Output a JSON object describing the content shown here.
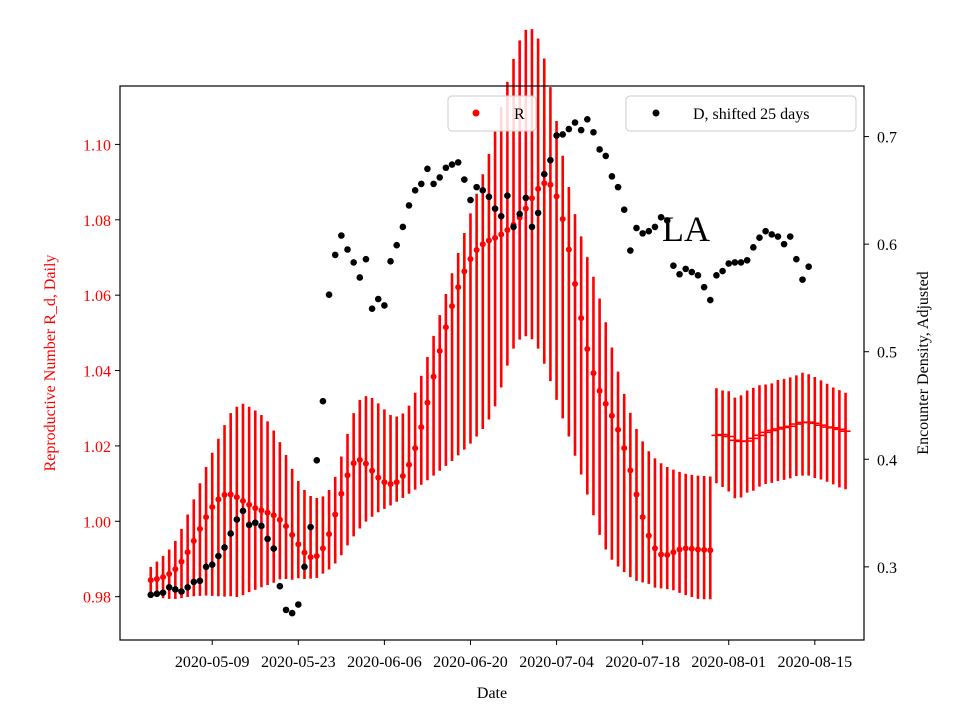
{
  "chart_data": {
    "type": "scatter",
    "title": "",
    "annotation": "LA",
    "xlabel": "Date",
    "ylabel_left": "Reproductive Number R_d, Daily",
    "ylabel_right": "Encounter Density, Adjusted",
    "x_start": "2020-04-29",
    "x_tick_labels": [
      "2020-05-09",
      "2020-05-23",
      "2020-06-06",
      "2020-06-20",
      "2020-07-04",
      "2020-07-18",
      "2020-08-01",
      "2020-08-15"
    ],
    "x_tick_day_index": [
      10,
      24,
      38,
      52,
      66,
      80,
      94,
      108
    ],
    "xlim_day_index": [
      -5,
      116
    ],
    "y_left": {
      "lim": [
        0.9685,
        1.1155
      ],
      "ticks": [
        0.98,
        1.0,
        1.02,
        1.04,
        1.06,
        1.08,
        1.1
      ],
      "tick_labels": [
        "0.98",
        "1.00",
        "1.02",
        "1.04",
        "1.06",
        "1.08",
        "1.10"
      ],
      "color": "#ff0000"
    },
    "y_right": {
      "lim": [
        0.232,
        0.747
      ],
      "ticks": [
        0.3,
        0.4,
        0.5,
        0.6,
        0.7
      ],
      "tick_labels": [
        "0.3",
        "0.4",
        "0.5",
        "0.6",
        "0.7"
      ],
      "color": "#000000"
    },
    "legend_left": {
      "label": "R",
      "placement": "upper-center",
      "marker_color": "#ff0000"
    },
    "legend_right": {
      "label": "D, shifted 25 days",
      "placement": "upper-right",
      "marker_color": "#000000"
    },
    "series_R": {
      "name": "R",
      "color": "#ff0000",
      "start_day_index": 0,
      "values": [
        0.9844,
        0.9847,
        0.9852,
        0.986,
        0.9873,
        0.9893,
        0.9918,
        0.9948,
        0.998,
        1.0011,
        1.0038,
        1.0058,
        1.007,
        1.0071,
        1.0064,
        1.0054,
        1.0044,
        1.0035,
        1.0029,
        1.0023,
        1.0016,
        1.0004,
        0.9987,
        0.9964,
        0.9939,
        0.9917,
        0.9905,
        0.9908,
        0.9928,
        0.9966,
        1.0018,
        1.0073,
        1.0122,
        1.0154,
        1.0163,
        1.0153,
        1.0134,
        1.0116,
        1.0104,
        1.0099,
        1.0104,
        1.012,
        1.015,
        1.0194,
        1.025,
        1.0315,
        1.0384,
        1.0452,
        1.0515,
        1.0571,
        1.0621,
        1.0663,
        1.0696,
        1.072,
        1.0735,
        1.0745,
        1.0752,
        1.0761,
        1.0773,
        1.0787,
        1.0806,
        1.083,
        1.0857,
        1.0882,
        1.0897,
        1.0893,
        1.0862,
        1.0802,
        1.0721,
        1.063,
        1.0539,
        1.0457,
        1.0393,
        1.0346,
        1.0312,
        1.028,
        1.0243,
        1.0194,
        1.0135,
        1.0071,
        1.0011,
        0.9962,
        0.9928,
        0.9912,
        0.9911,
        0.9918,
        0.9925,
        0.9928,
        0.9927,
        0.9925,
        0.9924,
        0.9923
      ],
      "err_low": [
        0.9807,
        0.9801,
        0.9796,
        0.9794,
        0.9794,
        0.9796,
        0.9799,
        0.9801,
        0.9802,
        0.9803,
        0.9802,
        0.9801,
        0.98,
        0.9801,
        0.9799,
        0.9804,
        0.9812,
        0.9818,
        0.9825,
        0.9831,
        0.9837,
        0.9846,
        0.9847,
        0.9845,
        0.9849,
        0.9847,
        0.9848,
        0.985,
        0.9861,
        0.9872,
        0.9888,
        0.991,
        0.9936,
        0.996,
        0.9981,
        0.9999,
        1.0012,
        1.0024,
        1.0033,
        1.0042,
        1.0052,
        1.0062,
        1.0073,
        1.0084,
        1.0097,
        1.0109,
        1.0121,
        1.0134,
        1.0147,
        1.016,
        1.0175,
        1.019,
        1.0206,
        1.0225,
        1.0245,
        1.027,
        1.0305,
        1.0355,
        1.0413,
        1.0458,
        1.0482,
        1.0491,
        1.0483,
        1.0458,
        1.0418,
        1.0372,
        1.0322,
        1.0273,
        1.0225,
        1.0174,
        1.0124,
        1.0071,
        1.0016,
        0.9964,
        0.9925,
        0.9898,
        0.988,
        0.9865,
        0.9852,
        0.9842,
        0.9838,
        0.9834,
        0.9824,
        0.9822,
        0.982,
        0.9817,
        0.981,
        0.9804,
        0.9799,
        0.9794,
        0.9793,
        0.9793
      ],
      "err_high": [
        0.9879,
        0.9893,
        0.9908,
        0.9925,
        0.9948,
        0.998,
        1.0018,
        1.0058,
        1.0101,
        1.0144,
        1.0182,
        1.0219,
        1.0255,
        1.0287,
        1.0304,
        1.0312,
        1.0304,
        1.0294,
        1.0282,
        1.0265,
        1.0241,
        1.021,
        1.0176,
        1.0139,
        1.0107,
        1.0083,
        1.0067,
        1.0062,
        1.0066,
        1.0083,
        1.0118,
        1.0172,
        1.0232,
        1.0287,
        1.0322,
        1.0332,
        1.0327,
        1.0313,
        1.0297,
        1.0282,
        1.0278,
        1.0286,
        1.0307,
        1.0341,
        1.0386,
        1.0436,
        1.0492,
        1.0547,
        1.0603,
        1.0658,
        1.0712,
        1.0765,
        1.0817,
        1.0869,
        1.0921,
        1.0975,
        1.1034,
        1.1099,
        1.1166,
        1.1227,
        1.1276,
        1.1304,
        1.1306,
        1.1281,
        1.1228,
        1.1152,
        1.1062,
        1.097,
        1.0887,
        1.0815,
        1.0756,
        1.0701,
        1.0649,
        1.0591,
        1.0528,
        1.0461,
        1.0397,
        1.0338,
        1.0288,
        1.0245,
        1.0212,
        1.0186,
        1.0167,
        1.0154,
        1.0144,
        1.0137,
        1.0131,
        1.0126,
        1.0123,
        1.0121,
        1.012,
        1.0119
      ],
      "tail_start_day_index": 92,
      "tail_values": [
        1.0228,
        1.023,
        1.0225,
        1.0215,
        1.0212,
        1.0213,
        1.022,
        1.0228,
        1.0236,
        1.0241,
        1.0245,
        1.0249,
        1.0252,
        1.0258,
        1.0262,
        1.0263,
        1.026,
        1.0255,
        1.025,
        1.0248,
        1.0244,
        1.0239
      ],
      "tail_err_low": [
        1.0101,
        1.0091,
        1.0079,
        1.0061,
        1.0063,
        1.0076,
        1.0081,
        1.0092,
        1.0099,
        1.0102,
        1.0107,
        1.011,
        1.0114,
        1.012,
        1.0121,
        1.0121,
        1.0115,
        1.0111,
        1.0105,
        1.0098,
        1.009,
        1.0085
      ],
      "tail_err_high": [
        1.0353,
        1.0347,
        1.0345,
        1.0328,
        1.0334,
        1.0347,
        1.0354,
        1.0361,
        1.0363,
        1.0366,
        1.0375,
        1.0378,
        1.0382,
        1.0387,
        1.0394,
        1.039,
        1.0383,
        1.0374,
        1.0365,
        1.0355,
        1.0348,
        1.0341
      ]
    },
    "series_D": {
      "name": "D, shifted 25 days",
      "color": "#000000",
      "points": [
        [
          0,
          0.274
        ],
        [
          1,
          0.275
        ],
        [
          2,
          0.276
        ],
        [
          3,
          0.281
        ],
        [
          4,
          0.279
        ],
        [
          5,
          0.277
        ],
        [
          6,
          0.281
        ],
        [
          7,
          0.286
        ],
        [
          8,
          0.287
        ],
        [
          9,
          0.3
        ],
        [
          10,
          0.302
        ],
        [
          11,
          0.31
        ],
        [
          12,
          0.318
        ],
        [
          13,
          0.331
        ],
        [
          14,
          0.344
        ],
        [
          15,
          0.352
        ],
        [
          16,
          0.339
        ],
        [
          17,
          0.341
        ],
        [
          18,
          0.338
        ],
        [
          19,
          0.326
        ],
        [
          20,
          0.317
        ],
        [
          21,
          0.282
        ],
        [
          22,
          0.26
        ],
        [
          23,
          0.257
        ],
        [
          24,
          0.265
        ],
        [
          25,
          0.3
        ],
        [
          26,
          0.337
        ],
        [
          27,
          0.399
        ],
        [
          28,
          0.454
        ],
        [
          29,
          0.553
        ],
        [
          30,
          0.59
        ],
        [
          31,
          0.608
        ],
        [
          32,
          0.595
        ],
        [
          33,
          0.583
        ],
        [
          34,
          0.569
        ],
        [
          35,
          0.586
        ],
        [
          36,
          0.54
        ],
        [
          37,
          0.549
        ],
        [
          38,
          0.543
        ],
        [
          39,
          0.584
        ],
        [
          40,
          0.599
        ],
        [
          41,
          0.616
        ],
        [
          42,
          0.636
        ],
        [
          43,
          0.65
        ],
        [
          44,
          0.656
        ],
        [
          45,
          0.67
        ],
        [
          46,
          0.656
        ],
        [
          47,
          0.662
        ],
        [
          48,
          0.671
        ],
        [
          49,
          0.674
        ],
        [
          50,
          0.676
        ],
        [
          51,
          0.66
        ],
        [
          52,
          0.641
        ],
        [
          53,
          0.653
        ],
        [
          54,
          0.65
        ],
        [
          55,
          0.644
        ],
        [
          56,
          0.633
        ],
        [
          57,
          0.626
        ],
        [
          58,
          0.645
        ],
        [
          59,
          0.616
        ],
        [
          60,
          0.628
        ],
        [
          61,
          0.643
        ],
        [
          62,
          0.616
        ],
        [
          63,
          0.629
        ],
        [
          64,
          0.665
        ],
        [
          65,
          0.678
        ],
        [
          66,
          0.701
        ],
        [
          67,
          0.702
        ],
        [
          68,
          0.707
        ],
        [
          69,
          0.713
        ],
        [
          70,
          0.706
        ],
        [
          71,
          0.716
        ],
        [
          72,
          0.704
        ],
        [
          73,
          0.688
        ],
        [
          74,
          0.682
        ],
        [
          75,
          0.663
        ],
        [
          76,
          0.653
        ],
        [
          77,
          0.632
        ],
        [
          78,
          0.594
        ],
        [
          79,
          0.615
        ],
        [
          80,
          0.61
        ],
        [
          81,
          0.612
        ],
        [
          82,
          0.616
        ],
        [
          83,
          0.625
        ],
        [
          84,
          0.622
        ],
        [
          85,
          0.58
        ],
        [
          86,
          0.572
        ],
        [
          87,
          0.577
        ],
        [
          88,
          0.574
        ],
        [
          89,
          0.571
        ],
        [
          90,
          0.56
        ],
        [
          91,
          0.548
        ],
        [
          92,
          0.571
        ],
        [
          93,
          0.575
        ],
        [
          94,
          0.582
        ],
        [
          95,
          0.583
        ],
        [
          96,
          0.583
        ],
        [
          97,
          0.585
        ],
        [
          98,
          0.597
        ],
        [
          99,
          0.606
        ],
        [
          100,
          0.612
        ],
        [
          101,
          0.609
        ],
        [
          102,
          0.607
        ],
        [
          103,
          0.6
        ],
        [
          104,
          0.607
        ],
        [
          105,
          0.586
        ],
        [
          106,
          0.567
        ],
        [
          107,
          0.579
        ]
      ]
    }
  }
}
